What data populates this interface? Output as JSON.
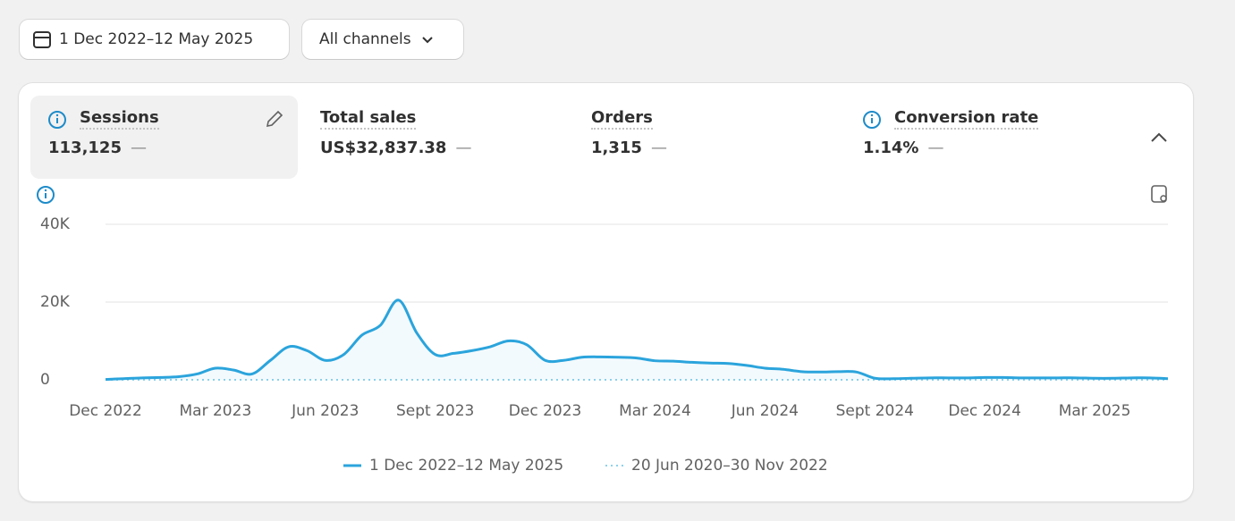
{
  "toolbar": {
    "date_range": "1 Dec 2022–12 May 2025",
    "channel": "All channels"
  },
  "metrics": [
    {
      "label": "Sessions",
      "value": "113,125",
      "change": "—"
    },
    {
      "label": "Total sales",
      "value": "US$32,837.38",
      "change": "—"
    },
    {
      "label": "Orders",
      "value": "1,315",
      "change": "—"
    },
    {
      "label": "Conversion rate",
      "value": "1.14%",
      "change": "—"
    }
  ],
  "chart_data": {
    "type": "line",
    "x": [
      "Dec 2022",
      null,
      null,
      null,
      null,
      null,
      "Mar 2023",
      null,
      null,
      null,
      null,
      null,
      "Jun 2023",
      null,
      null,
      null,
      null,
      null,
      "Sept 2023",
      null,
      null,
      null,
      null,
      null,
      "Dec 2023",
      null,
      null,
      null,
      null,
      null,
      "Mar 2024",
      null,
      null,
      null,
      null,
      null,
      "Jun 2024",
      null,
      null,
      null,
      null,
      null,
      "Sept 2024",
      null,
      null,
      null,
      null,
      null,
      "Dec 2024",
      null,
      null,
      null,
      null,
      null,
      "Mar 2025",
      null,
      null,
      null,
      null
    ],
    "series": [
      {
        "name": "1 Dec 2022–12 May 2025",
        "color": "#2ba4dc",
        "values": [
          100,
          300,
          500,
          600,
          800,
          1500,
          3000,
          2500,
          1500,
          5000,
          8500,
          7500,
          5000,
          6500,
          11500,
          14000,
          20500,
          12000,
          6500,
          6800,
          7500,
          8500,
          10000,
          9000,
          5000,
          5000,
          5800,
          5900,
          5800,
          5600,
          4900,
          4800,
          4500,
          4300,
          4200,
          3700,
          3000,
          2700,
          2100,
          2000,
          2100,
          2000,
          400,
          300,
          400,
          500,
          500,
          500,
          600,
          600,
          500,
          500,
          500,
          500,
          400,
          400,
          500,
          500,
          300
        ]
      },
      {
        "name": "20 Jun 2020–30 Nov 2022",
        "color": "#8ed2ec",
        "values": [
          0,
          0,
          0,
          0,
          0,
          0,
          0,
          0,
          0,
          0,
          0,
          0,
          0,
          0,
          0,
          0,
          0,
          0,
          0,
          0,
          0,
          0,
          0,
          0,
          0,
          0,
          0,
          0,
          0,
          0,
          0,
          0,
          0,
          0,
          0,
          0,
          0,
          0,
          0,
          0,
          0,
          0,
          0,
          0,
          0,
          0,
          0,
          0,
          0,
          0,
          0,
          0,
          0,
          0,
          0,
          0,
          0,
          0,
          0
        ]
      }
    ],
    "ylim": [
      0,
      40000
    ],
    "yticks": [
      0,
      {
        "value": 20000,
        "label": "20K"
      },
      {
        "value": 40000,
        "label": "40K"
      }
    ],
    "grid": true
  }
}
